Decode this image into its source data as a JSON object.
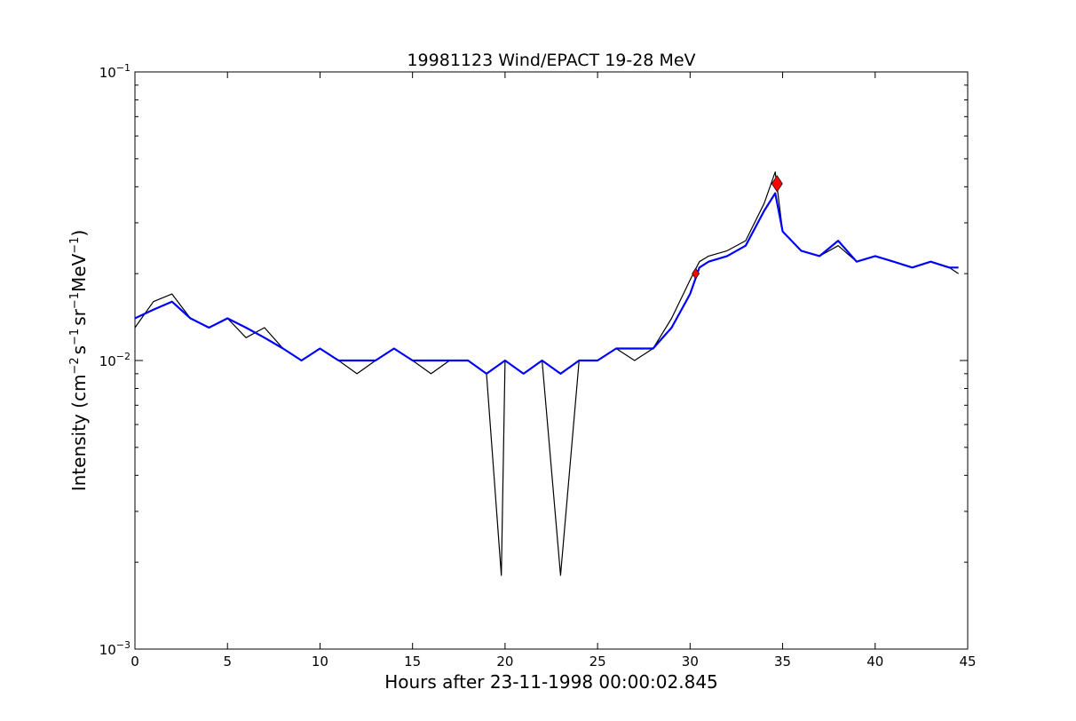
{
  "chart_data": {
    "type": "line",
    "title": "19981123 Wind/EPACT 19-28 MeV",
    "xlabel": "Hours after 23-11-1998 00:00:02.845",
    "ylabel_parts": {
      "prefix": "Intensity (cm",
      "exp1": "−2",
      "s": "s",
      "exp2": "−1",
      "sr": "sr",
      "exp3": "−1",
      "mev": "MeV",
      "exp4": "−1",
      "suffix": ")"
    },
    "xlim": [
      0,
      45
    ],
    "ylim": [
      0.001,
      0.1
    ],
    "yscale": "log",
    "x_ticks": [
      0,
      5,
      10,
      15,
      20,
      25,
      30,
      35,
      40,
      45
    ],
    "x_tick_labels": [
      "0",
      "5",
      "10",
      "15",
      "20",
      "25",
      "30",
      "35",
      "40",
      "45"
    ],
    "y_ticks": [
      0.001,
      0.01,
      0.1
    ],
    "y_tick_labels": [
      {
        "base": "10",
        "exp": "−3"
      },
      {
        "base": "10",
        "exp": "−2"
      },
      {
        "base": "10",
        "exp": "−1"
      }
    ],
    "series": [
      {
        "role": "raw",
        "color": "#000000",
        "x": [
          0.0,
          1.0,
          2.0,
          3.0,
          4.0,
          5.0,
          6.0,
          7.0,
          8.0,
          9.0,
          10.0,
          11.0,
          12.0,
          13.0,
          14.0,
          15.0,
          16.0,
          17.0,
          18.0,
          19.0,
          19.8,
          20.0,
          21.0,
          22.0,
          23.0,
          24.0,
          25.0,
          26.0,
          27.0,
          28.0,
          29.0,
          30.0,
          30.5,
          31.0,
          32.0,
          33.0,
          34.0,
          34.6,
          35.0,
          36.0,
          37.0,
          38.0,
          39.0,
          40.0,
          41.0,
          42.0,
          43.0,
          44.0,
          44.5
        ],
        "y": [
          0.013,
          0.016,
          0.017,
          0.014,
          0.013,
          0.014,
          0.012,
          0.013,
          0.011,
          0.01,
          0.011,
          0.01,
          0.009,
          0.01,
          0.011,
          0.01,
          0.009,
          0.01,
          0.01,
          0.009,
          0.0018,
          0.01,
          0.009,
          0.01,
          0.0018,
          0.01,
          0.01,
          0.011,
          0.01,
          0.011,
          0.014,
          0.019,
          0.022,
          0.023,
          0.024,
          0.026,
          0.035,
          0.045,
          0.028,
          0.024,
          0.023,
          0.025,
          0.022,
          0.023,
          0.022,
          0.021,
          0.022,
          0.021,
          0.02
        ]
      },
      {
        "role": "smoothed",
        "color": "#0000ff",
        "x": [
          0.0,
          1.0,
          2.0,
          3.0,
          4.0,
          5.0,
          6.0,
          7.0,
          8.0,
          9.0,
          10.0,
          11.0,
          12.0,
          13.0,
          14.0,
          15.0,
          16.0,
          17.0,
          18.0,
          19.0,
          20.0,
          21.0,
          22.0,
          23.0,
          24.0,
          25.0,
          26.0,
          27.0,
          28.0,
          29.0,
          30.0,
          30.5,
          31.0,
          32.0,
          33.0,
          34.0,
          34.6,
          35.0,
          36.0,
          37.0,
          38.0,
          39.0,
          40.0,
          41.0,
          42.0,
          43.0,
          44.0,
          44.5
        ],
        "y": [
          0.014,
          0.015,
          0.016,
          0.014,
          0.013,
          0.014,
          0.013,
          0.012,
          0.011,
          0.01,
          0.011,
          0.01,
          0.01,
          0.01,
          0.011,
          0.01,
          0.01,
          0.01,
          0.01,
          0.009,
          0.01,
          0.009,
          0.01,
          0.009,
          0.01,
          0.01,
          0.011,
          0.011,
          0.011,
          0.013,
          0.017,
          0.021,
          0.022,
          0.023,
          0.025,
          0.033,
          0.038,
          0.028,
          0.024,
          0.023,
          0.026,
          0.022,
          0.023,
          0.022,
          0.021,
          0.022,
          0.021,
          0.021
        ]
      }
    ],
    "markers": [
      {
        "x": 30.3,
        "y": 0.02,
        "color": "#ff0000",
        "shape": "diamond",
        "size": "small"
      },
      {
        "x": 34.7,
        "y": 0.041,
        "color": "#ff0000",
        "shape": "diamond",
        "size": "large"
      }
    ],
    "grid": false,
    "legend": "none"
  }
}
